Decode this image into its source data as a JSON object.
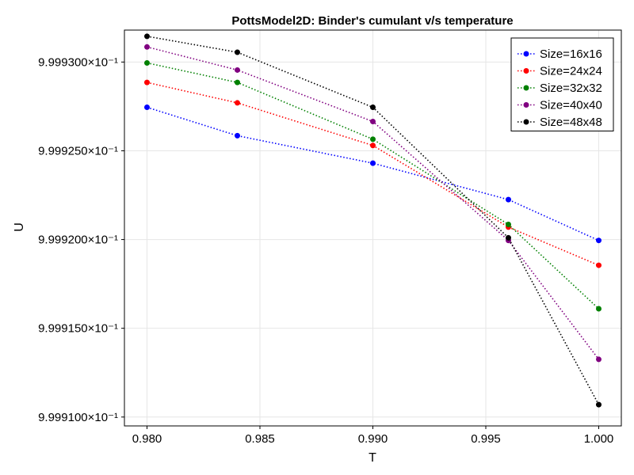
{
  "chart_data": {
    "type": "line",
    "title": "PottsModel2D: Binder's cumulant v/s temperature",
    "xlabel": "T",
    "ylabel": "U",
    "x": [
      0.98,
      0.984,
      0.99,
      0.996,
      1.0
    ],
    "xlim": [
      0.979,
      1.001
    ],
    "ylim": [
      0.9999095,
      0.9999318
    ],
    "x_ticks": [
      0.98,
      0.985,
      0.99,
      0.995,
      1.0
    ],
    "x_tick_labels": [
      "0.980",
      "0.985",
      "0.990",
      "0.995",
      "1.000"
    ],
    "y_ticks": [
      0.99991,
      0.999915,
      0.99992,
      0.999925,
      0.99993
    ],
    "y_tick_labels": [
      "9.999100×10⁻¹",
      "9.999150×10⁻¹",
      "9.999200×10⁻¹",
      "9.999250×10⁻¹",
      "9.999300×10⁻¹"
    ],
    "grid": true,
    "line_style": "dotted",
    "legend_position": "top-right",
    "series": [
      {
        "name": "Size=16x16",
        "color": "#0000ff",
        "values": [
          0.99992745,
          0.99992585,
          0.9999243,
          0.99992225,
          0.99991995
        ]
      },
      {
        "name": "Size=24x24",
        "color": "#ff0000",
        "values": [
          0.99992885,
          0.9999277,
          0.9999253,
          0.9999207,
          0.99991855
        ]
      },
      {
        "name": "Size=32x32",
        "color": "#008000",
        "values": [
          0.99992995,
          0.99992885,
          0.99992565,
          0.99992085,
          0.9999161
        ]
      },
      {
        "name": "Size=40x40",
        "color": "#800080",
        "values": [
          0.99993085,
          0.99992955,
          0.99992665,
          0.99991995,
          0.99991325
        ]
      },
      {
        "name": "Size=48x48",
        "color": "#000000",
        "values": [
          0.99993145,
          0.99993055,
          0.99992745,
          0.9999201,
          0.9999107
        ]
      }
    ]
  }
}
